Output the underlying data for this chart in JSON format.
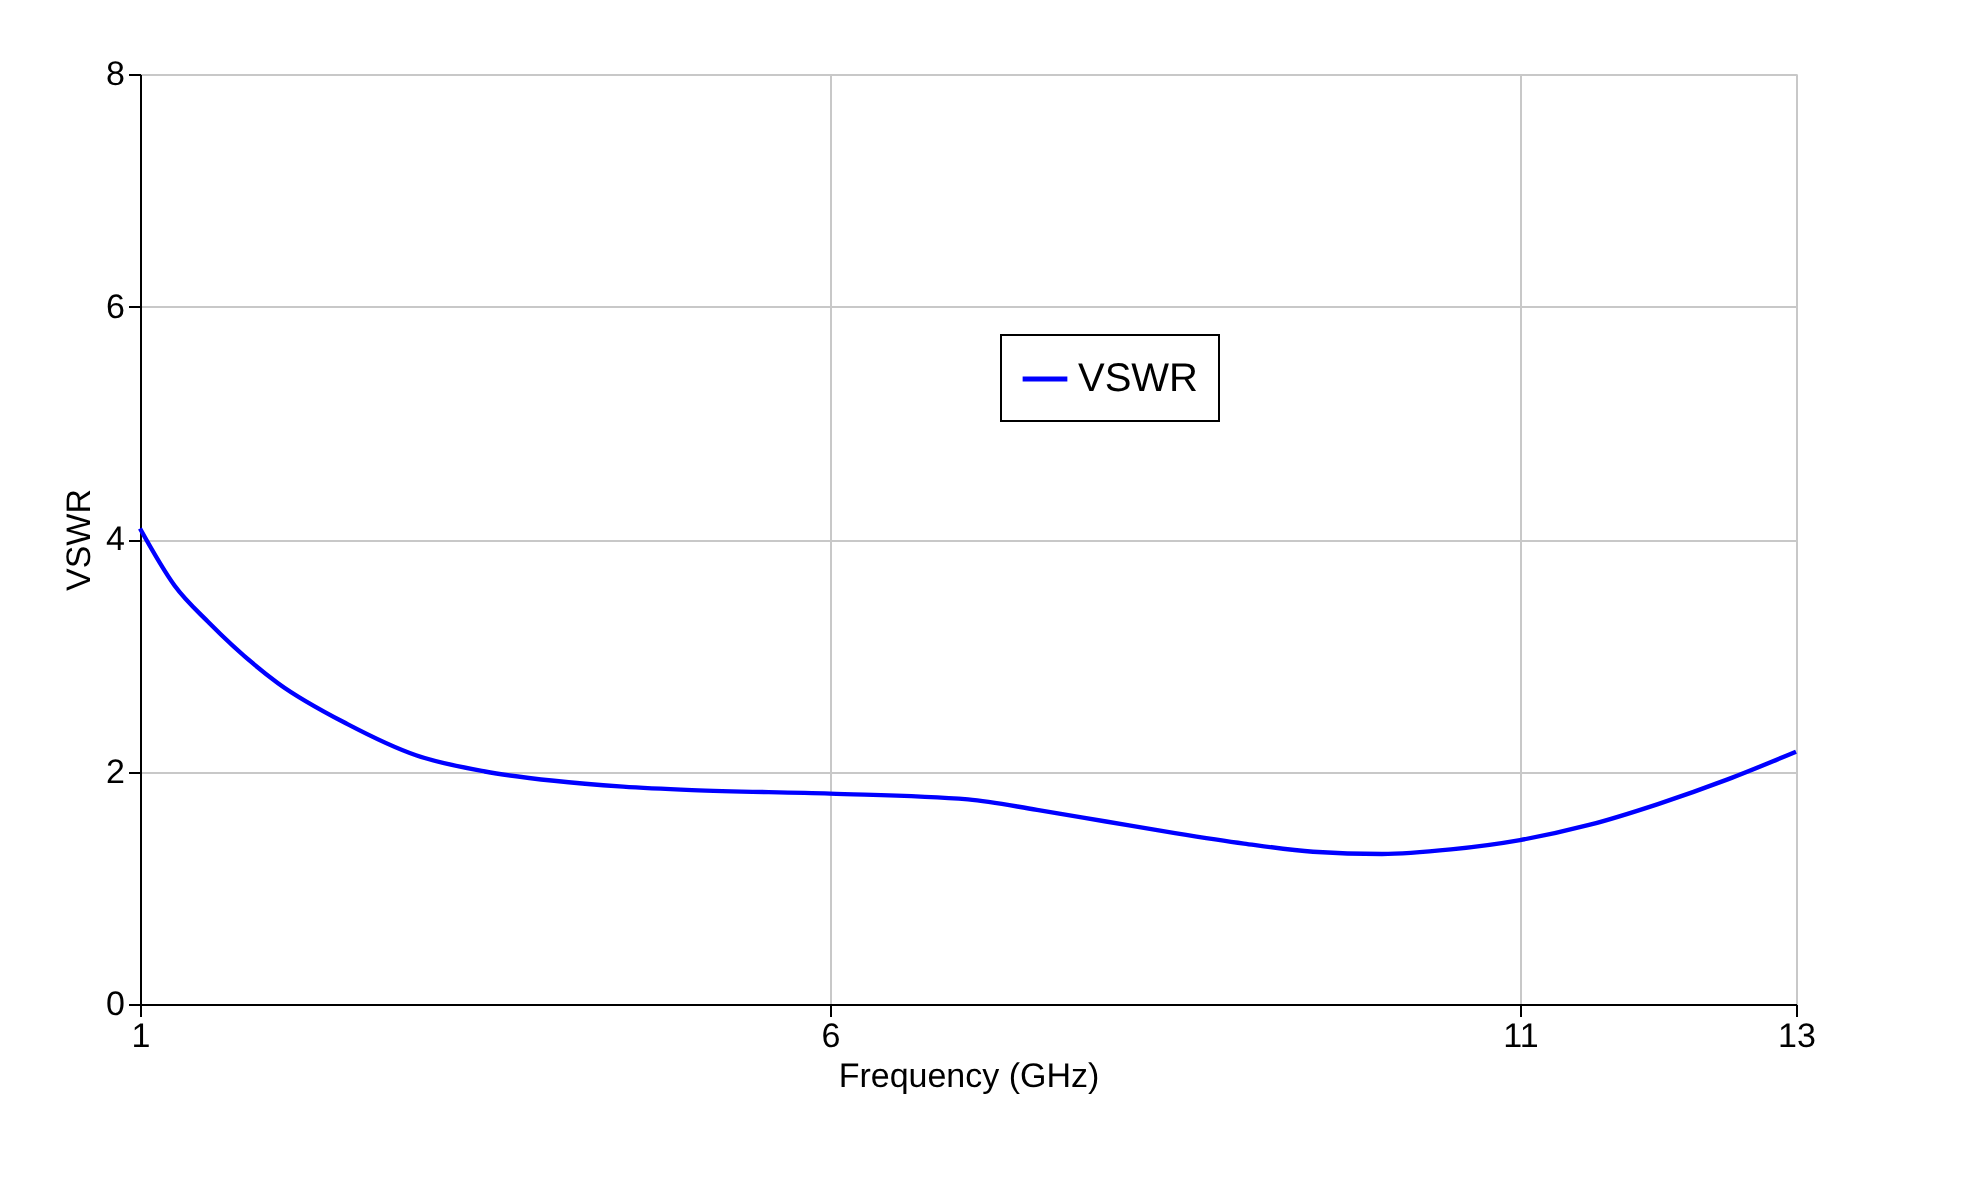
{
  "chart_data": {
    "type": "line",
    "xlabel": "Frequency (GHz)",
    "ylabel": "VSWR",
    "x": [
      1,
      1.25,
      1.5,
      2,
      2.5,
      3,
      3.5,
      4,
      4.5,
      5,
      6,
      7,
      7.5,
      8,
      8.5,
      9,
      9.5,
      10,
      10.5,
      11,
      11.5,
      12,
      12.5,
      13
    ],
    "series": [
      {
        "name": "VSWR",
        "color": "#0000ff",
        "values": [
          4.09,
          3.6,
          3.28,
          2.76,
          2.41,
          2.14,
          2.0,
          1.92,
          1.87,
          1.84,
          1.81,
          1.76,
          1.67,
          1.57,
          1.47,
          1.38,
          1.31,
          1.29,
          1.33,
          1.41,
          1.54,
          1.72,
          1.93,
          2.17
        ]
      }
    ],
    "xlim": [
      1,
      13
    ],
    "xticks": [
      1,
      6,
      11,
      13
    ],
    "ylim": [
      0,
      8
    ],
    "yticks": [
      0,
      2,
      4,
      6,
      8
    ],
    "grid": true,
    "legend": "top right",
    "line_style": "solid",
    "marker": "none"
  }
}
